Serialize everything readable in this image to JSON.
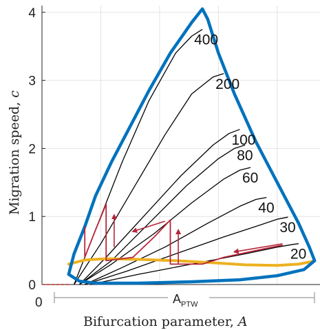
{
  "chart_data": {
    "type": "line",
    "title": "",
    "xlabel": "Bifurcation parameter,",
    "xlabel_var": "A",
    "ylabel": "Migration speed,",
    "ylabel_var": "c",
    "ylim": [
      0,
      4.1
    ],
    "yticks": [
      0,
      1,
      2,
      3,
      4
    ],
    "xtick_labels": [
      "0"
    ],
    "grid": true,
    "annotation": {
      "text": "A",
      "sub": "PTW"
    },
    "colors": {
      "envelope": "#0072bd",
      "curves": "#000000",
      "yellow_curve": "#edb120",
      "red_path": "#b5253a",
      "red_dashed": "#d9534f",
      "grid": "#e3e3e3",
      "bracket": "#9a9a9a"
    },
    "envelope": {
      "name": "",
      "x": [
        0.05,
        0.06,
        0.08,
        0.1,
        0.13,
        0.17,
        0.2,
        0.24,
        0.28,
        0.3,
        0.31,
        0.33,
        0.36,
        0.4,
        0.44,
        0.48,
        0.5,
        0.51,
        0.49,
        0.44,
        0.37,
        0.28,
        0.18,
        0.1,
        0.07,
        0.05
      ],
      "y": [
        0.15,
        0.45,
        0.85,
        1.3,
        1.8,
        2.4,
        2.85,
        3.4,
        3.85,
        4.05,
        3.9,
        3.4,
        2.8,
        2.1,
        1.5,
        0.9,
        0.55,
        0.35,
        0.22,
        0.13,
        0.07,
        0.04,
        0.02,
        0.02,
        0.05,
        0.15
      ]
    },
    "series": [
      {
        "label": "400",
        "x": [
          0.06,
          0.1,
          0.15,
          0.2,
          0.25,
          0.28,
          0.3
        ],
        "y": [
          0.0,
          0.8,
          1.8,
          2.7,
          3.4,
          3.65,
          3.75
        ]
      },
      {
        "label": "200",
        "x": [
          0.06,
          0.11,
          0.17,
          0.23,
          0.28,
          0.32,
          0.34
        ],
        "y": [
          0.0,
          0.6,
          1.4,
          2.2,
          2.8,
          3.05,
          3.1
        ]
      },
      {
        "label": "100",
        "x": [
          0.07,
          0.12,
          0.19,
          0.26,
          0.32,
          0.35,
          0.37
        ],
        "y": [
          0.0,
          0.4,
          1.0,
          1.6,
          2.05,
          2.22,
          2.28
        ]
      },
      {
        "label": "80",
        "x": [
          0.07,
          0.13,
          0.2,
          0.27,
          0.33,
          0.36,
          0.38
        ],
        "y": [
          0.0,
          0.35,
          0.9,
          1.45,
          1.85,
          2.0,
          2.05
        ]
      },
      {
        "label": "60",
        "x": [
          0.07,
          0.13,
          0.21,
          0.28,
          0.34,
          0.37,
          0.39
        ],
        "y": [
          0.0,
          0.3,
          0.75,
          1.2,
          1.55,
          1.68,
          1.72
        ]
      },
      {
        "label": "40",
        "x": [
          0.08,
          0.15,
          0.23,
          0.31,
          0.37,
          0.4,
          0.42
        ],
        "y": [
          0.0,
          0.25,
          0.55,
          0.9,
          1.15,
          1.25,
          1.28
        ]
      },
      {
        "label": "30",
        "x": [
          0.08,
          0.16,
          0.25,
          0.34,
          0.41,
          0.44,
          0.46
        ],
        "y": [
          0.0,
          0.2,
          0.45,
          0.7,
          0.88,
          0.96,
          0.99
        ]
      },
      {
        "label": "20",
        "x": [
          0.09,
          0.18,
          0.28,
          0.38,
          0.44,
          0.47,
          0.48
        ],
        "y": [
          0.0,
          0.15,
          0.3,
          0.45,
          0.55,
          0.59,
          0.6
        ]
      }
    ],
    "yellow_curve": {
      "x": [
        0.05,
        0.08,
        0.12,
        0.18,
        0.25,
        0.32,
        0.38,
        0.44,
        0.48,
        0.5,
        0.51
      ],
      "y": [
        0.3,
        0.36,
        0.38,
        0.37,
        0.35,
        0.32,
        0.29,
        0.28,
        0.3,
        0.33,
        0.35
      ]
    },
    "red_path": {
      "x": [
        0.45,
        0.4,
        0.34,
        0.3,
        0.24,
        0.24,
        0.21,
        0.17,
        0.12,
        0.12,
        0.1,
        0.08,
        0.08
      ],
      "y": [
        0.58,
        0.5,
        0.4,
        0.3,
        0.3,
        0.95,
        0.7,
        0.4,
        0.35,
        1.18,
        0.8,
        0.4,
        0.85
      ]
    },
    "red_dashed": {
      "x": [
        0.0,
        0.05
      ],
      "y": [
        0.0,
        0.0
      ]
    },
    "arrows": [
      {
        "x1": 0.45,
        "y1": 0.6,
        "x2": 0.36,
        "y2": 0.48
      },
      {
        "x1": 0.23,
        "y1": 0.93,
        "x2": 0.17,
        "y2": 0.78
      },
      {
        "x1": 0.255,
        "y1": 0.3,
        "x2": 0.255,
        "y2": 0.8
      },
      {
        "x1": 0.135,
        "y1": 0.55,
        "x2": 0.135,
        "y2": 1.02
      }
    ]
  }
}
